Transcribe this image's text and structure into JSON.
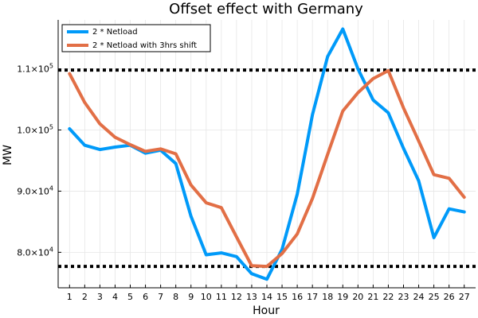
{
  "chart_data": {
    "type": "line",
    "title": "Offset effect with Germany",
    "xlabel": "Hour",
    "ylabel": "MW",
    "x": [
      1,
      2,
      3,
      4,
      5,
      6,
      7,
      8,
      9,
      10,
      11,
      12,
      13,
      14,
      15,
      16,
      17,
      18,
      19,
      20,
      21,
      22,
      23,
      24,
      25,
      26,
      27
    ],
    "xlim": [
      0.25,
      27.75
    ],
    "ylim": [
      74200,
      118000
    ],
    "x_ticks": [
      1,
      2,
      3,
      4,
      5,
      6,
      7,
      8,
      9,
      10,
      11,
      12,
      13,
      14,
      15,
      16,
      17,
      18,
      19,
      20,
      21,
      22,
      23,
      24,
      25,
      26,
      27
    ],
    "y_ticks": [
      {
        "value": 80000,
        "mantissa": "8.0",
        "exp": "4"
      },
      {
        "value": 90000,
        "mantissa": "9.0",
        "exp": "4"
      },
      {
        "value": 100000,
        "mantissa": "1.0",
        "exp": "5"
      },
      {
        "value": 110000,
        "mantissa": "1.1",
        "exp": "5"
      }
    ],
    "times_sign": "×10",
    "grid": true,
    "legend_position": "top-left",
    "series": [
      {
        "name": "2 * Netload",
        "color": "#009af9",
        "values": [
          100200,
          97500,
          96800,
          97200,
          97500,
          96200,
          96700,
          94500,
          85900,
          79600,
          79900,
          79300,
          76500,
          75600,
          80500,
          89500,
          102500,
          112000,
          116500,
          110000,
          104900,
          102800,
          97000,
          91700,
          82400,
          87100,
          86600
        ]
      },
      {
        "name": "2 * Netload with 3hrs shift",
        "color": "#e26f46",
        "values": [
          109200,
          104500,
          101000,
          98800,
          97600,
          96500,
          96900,
          96100,
          91000,
          88100,
          87300,
          82500,
          77800,
          77700,
          79800,
          83000,
          88800,
          96000,
          103100,
          106100,
          108400,
          109700,
          103600,
          98200,
          92700,
          92100,
          89000
        ]
      }
    ],
    "hlines": [
      {
        "value": 109800,
        "color": "#000000",
        "style": "dotted"
      },
      {
        "value": 77700,
        "color": "#000000",
        "style": "dotted"
      }
    ]
  }
}
